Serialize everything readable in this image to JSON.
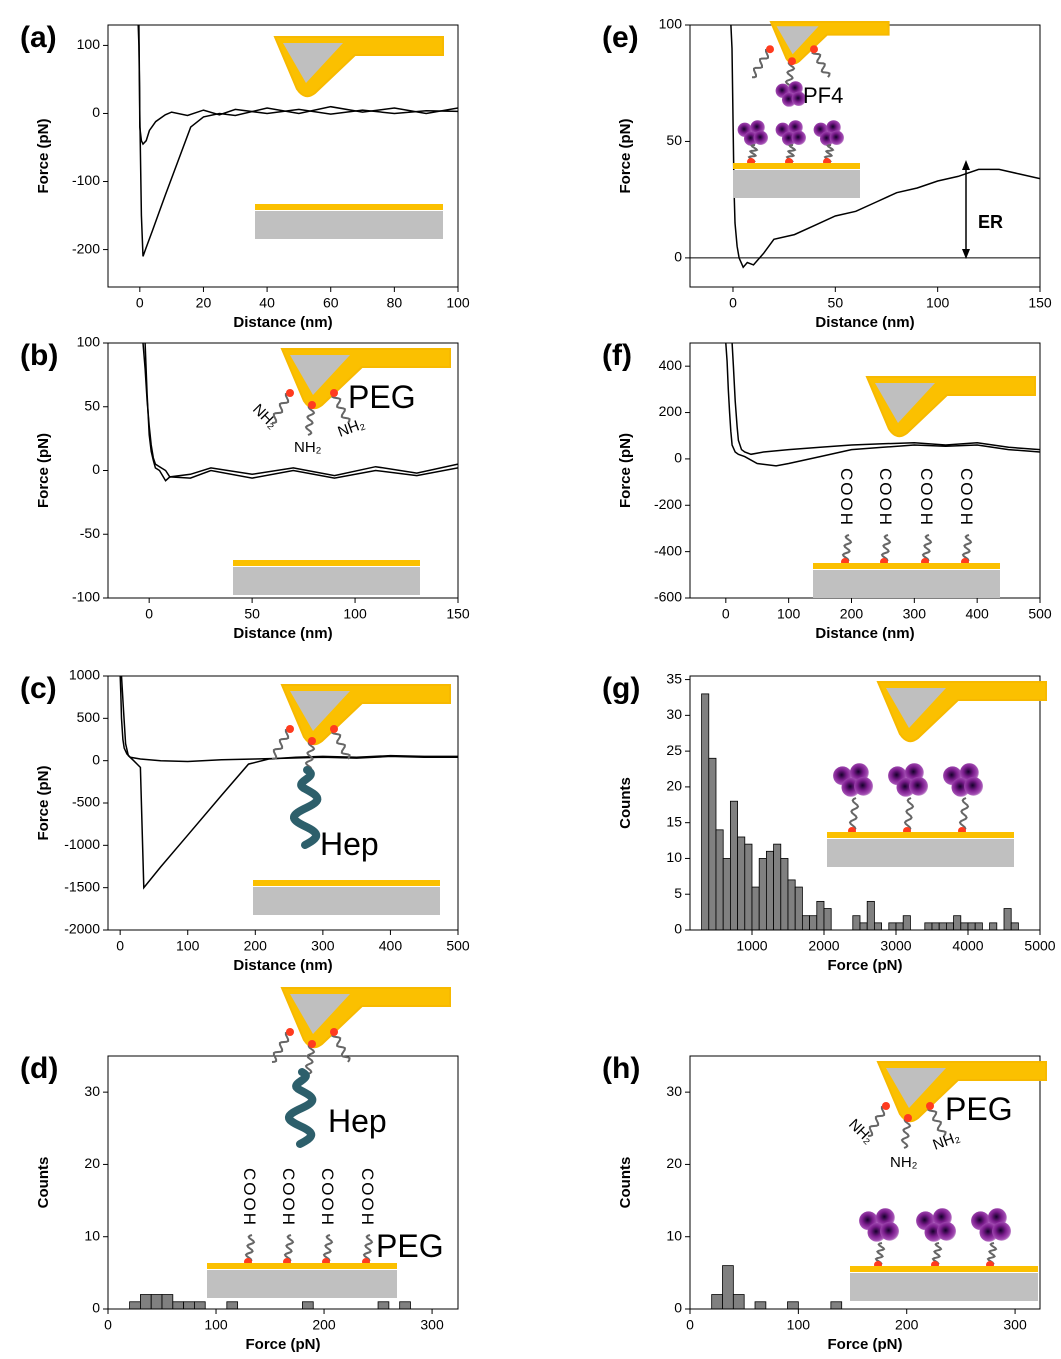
{
  "chart_data": [
    {
      "type": "line",
      "label": "(a)",
      "xlabel": "Distance (nm)",
      "ylabel": "Force (pN)",
      "xlim": [
        -10,
        100
      ],
      "ylim": [
        -255,
        130
      ],
      "xticks": [
        0,
        20,
        40,
        60,
        80,
        100
      ],
      "yticks": [
        -200,
        -100,
        0,
        100
      ],
      "series": [
        {
          "color": "#000000",
          "x": [
            -0.5,
            -0.3,
            -0.1,
            0,
            0.5,
            1,
            2,
            3,
            5,
            8,
            10,
            15,
            20,
            25,
            30,
            40,
            50,
            60,
            70,
            80,
            90,
            100
          ],
          "values": [
            130,
            100,
            40,
            -20,
            -40,
            -45,
            -40,
            -25,
            -12,
            -2,
            2,
            -3,
            5,
            -2,
            6,
            0,
            6,
            -1,
            5,
            0,
            4,
            3
          ]
        },
        {
          "color": "#000000",
          "x": [
            -0.3,
            0,
            0.5,
            1,
            2,
            4,
            6,
            8,
            12,
            16,
            20,
            25,
            30,
            40,
            50,
            60,
            70,
            80,
            90,
            100
          ],
          "values": [
            130,
            0,
            -150,
            -210,
            -197,
            -172,
            -146,
            -120,
            -70,
            -20,
            -5,
            0,
            -3,
            8,
            0,
            10,
            2,
            8,
            0,
            8
          ]
        }
      ]
    },
    {
      "type": "line",
      "label": "(b)",
      "xlabel": "Distance (nm)",
      "ylabel": "Force (pN)",
      "xlim": [
        -20,
        150
      ],
      "ylim": [
        -100,
        100
      ],
      "xticks": [
        0,
        50,
        100,
        150
      ],
      "yticks": [
        -100,
        -50,
        0,
        50,
        100
      ],
      "annotations": [
        "PEG",
        "NH₂"
      ],
      "series": [
        {
          "color": "#000000",
          "x": [
            -3,
            -2,
            -1,
            0,
            1,
            2,
            3,
            5,
            8,
            10,
            20,
            30,
            50,
            70,
            90,
            110,
            130,
            150
          ],
          "values": [
            100,
            80,
            55,
            35,
            20,
            10,
            5,
            3,
            0,
            -5,
            -3,
            2,
            -3,
            2,
            -4,
            3,
            -2,
            5
          ]
        },
        {
          "color": "#000000",
          "x": [
            -2,
            -1,
            0,
            1,
            2,
            3,
            5,
            8,
            10,
            20,
            30,
            50,
            70,
            90,
            110,
            130,
            150
          ],
          "values": [
            100,
            60,
            28,
            15,
            8,
            2,
            0,
            -8,
            -5,
            -6,
            0,
            -6,
            0,
            -6,
            0,
            -4,
            2
          ]
        }
      ]
    },
    {
      "type": "line",
      "label": "(c)",
      "xlabel": "Distance (nm)",
      "ylabel": "Force (pN)",
      "xlim": [
        -18,
        500
      ],
      "ylim": [
        -2000,
        1000
      ],
      "xticks": [
        0,
        100,
        200,
        300,
        400,
        500
      ],
      "yticks": [
        -2000,
        -1500,
        -1000,
        -500,
        0,
        500,
        1000
      ],
      "annotations": [
        "Hep"
      ],
      "series": [
        {
          "color": "#000000",
          "x": [
            0,
            1,
            2,
            4,
            6,
            10,
            15,
            30,
            60,
            100,
            150,
            200,
            250,
            300,
            350,
            400,
            450,
            500
          ],
          "values": [
            1000,
            800,
            500,
            250,
            150,
            80,
            40,
            20,
            0,
            -10,
            10,
            20,
            30,
            40,
            30,
            50,
            40,
            40
          ]
        },
        {
          "color": "#000000",
          "x": [
            2,
            5,
            8,
            12,
            20,
            30,
            35,
            60,
            100,
            150,
            190,
            220,
            260,
            300,
            350,
            400,
            450,
            500
          ],
          "values": [
            1000,
            600,
            200,
            60,
            0,
            -80,
            -1500,
            -1255,
            -880,
            -410,
            -40,
            20,
            40,
            50,
            40,
            60,
            50,
            50
          ]
        }
      ]
    },
    {
      "type": "histogram",
      "label": "(d)",
      "xlabel": "Force (pN)",
      "ylabel": "Counts",
      "xlim": [
        0,
        324
      ],
      "ylim": [
        0,
        35
      ],
      "xticks": [
        0,
        100,
        200,
        300
      ],
      "yticks": [
        0,
        10,
        20,
        30
      ],
      "annotations": [
        "Hep",
        "COOH",
        "PEG"
      ],
      "color": "#808080",
      "bins": [
        20,
        30,
        40,
        50,
        60,
        70,
        80,
        90,
        100,
        110,
        120,
        130,
        140,
        150,
        160,
        170,
        180,
        190,
        200,
        210,
        220,
        230,
        240,
        250,
        260,
        270,
        280
      ],
      "values": [
        1,
        2,
        2,
        2,
        1,
        1,
        1,
        0,
        0,
        1,
        0,
        0,
        0,
        0,
        0,
        0,
        1,
        0,
        0,
        0,
        0,
        0,
        0,
        1,
        0,
        1
      ]
    },
    {
      "type": "line",
      "label": "(e)",
      "xlabel": "Distance (nm)",
      "ylabel": "Force (pN)",
      "xlim": [
        -21,
        150
      ],
      "ylim": [
        -12.5,
        100
      ],
      "xticks": [
        0,
        50,
        100,
        150
      ],
      "yticks": [
        0,
        50,
        100
      ],
      "annotations": [
        "PF4",
        "ER"
      ],
      "series": [
        {
          "color": "#000000",
          "x": [
            -1,
            -0.5,
            0,
            0.5,
            1,
            2,
            3,
            5,
            7,
            10,
            15,
            20,
            30,
            40,
            50,
            60,
            70,
            80,
            90,
            100,
            110,
            120,
            130,
            140,
            150
          ],
          "values": [
            100,
            90,
            60,
            30,
            15,
            5,
            0,
            -4,
            -2,
            -3,
            2,
            8,
            10,
            14,
            18,
            20,
            24,
            28,
            30,
            33,
            35,
            38,
            38,
            36,
            34
          ]
        }
      ]
    },
    {
      "type": "line",
      "label": "(f)",
      "xlabel": "Distance (nm)",
      "ylabel": "Force (pN)",
      "xlim": [
        -57,
        500
      ],
      "ylim": [
        -600,
        500
      ],
      "xticks": [
        0,
        100,
        200,
        300,
        400,
        500
      ],
      "yticks": [
        -600,
        -400,
        -200,
        0,
        200,
        400
      ],
      "annotations": [
        "COOH"
      ],
      "series": [
        {
          "color": "#000000",
          "x": [
            0,
            2,
            4,
            6,
            8,
            10,
            15,
            20,
            30,
            50,
            80,
            100,
            150,
            200,
            250,
            300,
            350,
            400,
            450,
            500
          ],
          "values": [
            500,
            420,
            300,
            200,
            120,
            60,
            30,
            20,
            10,
            -20,
            -30,
            -20,
            10,
            40,
            50,
            60,
            55,
            60,
            40,
            30
          ]
        },
        {
          "color": "#000000",
          "x": [
            10,
            12,
            15,
            18,
            20,
            25,
            30,
            40,
            60,
            100,
            150,
            200,
            250,
            300,
            350,
            400,
            450,
            500
          ],
          "values": [
            500,
            400,
            250,
            140,
            80,
            40,
            30,
            20,
            30,
            40,
            50,
            60,
            65,
            70,
            60,
            70,
            50,
            40
          ]
        }
      ]
    },
    {
      "type": "histogram",
      "label": "(g)",
      "xlabel": "Force (pN)",
      "ylabel": "Counts",
      "xlim": [
        139,
        5000
      ],
      "ylim": [
        0,
        35.5
      ],
      "xticks": [
        1000,
        2000,
        3000,
        4000,
        5000
      ],
      "yticks": [
        0,
        5,
        10,
        15,
        20,
        25,
        30,
        35
      ],
      "color": "#808080",
      "bins": [
        300,
        400,
        500,
        600,
        700,
        800,
        900,
        1000,
        1100,
        1200,
        1300,
        1400,
        1500,
        1600,
        1700,
        1800,
        1900,
        2000,
        2100,
        2200,
        2300,
        2400,
        2500,
        2600,
        2700,
        2800,
        2900,
        3000,
        3100,
        3200,
        3300,
        3400,
        3500,
        3600,
        3700,
        3800,
        3900,
        4000,
        4100,
        4200,
        4300,
        4400,
        4500,
        4600,
        4700,
        4800
      ],
      "values": [
        33,
        24,
        14,
        10,
        18,
        13,
        12,
        6,
        10,
        11,
        12,
        10,
        7,
        6,
        2,
        2,
        4,
        3,
        0,
        0,
        0,
        2,
        1,
        4,
        1,
        0,
        1,
        1,
        2,
        0,
        0,
        1,
        1,
        1,
        1,
        2,
        1,
        1,
        1,
        0,
        1,
        0,
        3,
        1,
        0
      ]
    },
    {
      "type": "histogram",
      "label": "(h)",
      "xlabel": "Force (pN)",
      "ylabel": "Counts",
      "xlim": [
        0,
        323
      ],
      "ylim": [
        0,
        35
      ],
      "xticks": [
        0,
        100,
        200,
        300
      ],
      "yticks": [
        0,
        10,
        20,
        30
      ],
      "annotations": [
        "PEG",
        "NH₂"
      ],
      "color": "#808080",
      "bins": [
        20,
        30,
        40,
        50,
        60,
        70,
        80,
        90,
        100,
        110,
        120,
        130,
        140
      ],
      "values": [
        2,
        6,
        2,
        0,
        1,
        0,
        0,
        1,
        0,
        0,
        0,
        1
      ]
    }
  ]
}
